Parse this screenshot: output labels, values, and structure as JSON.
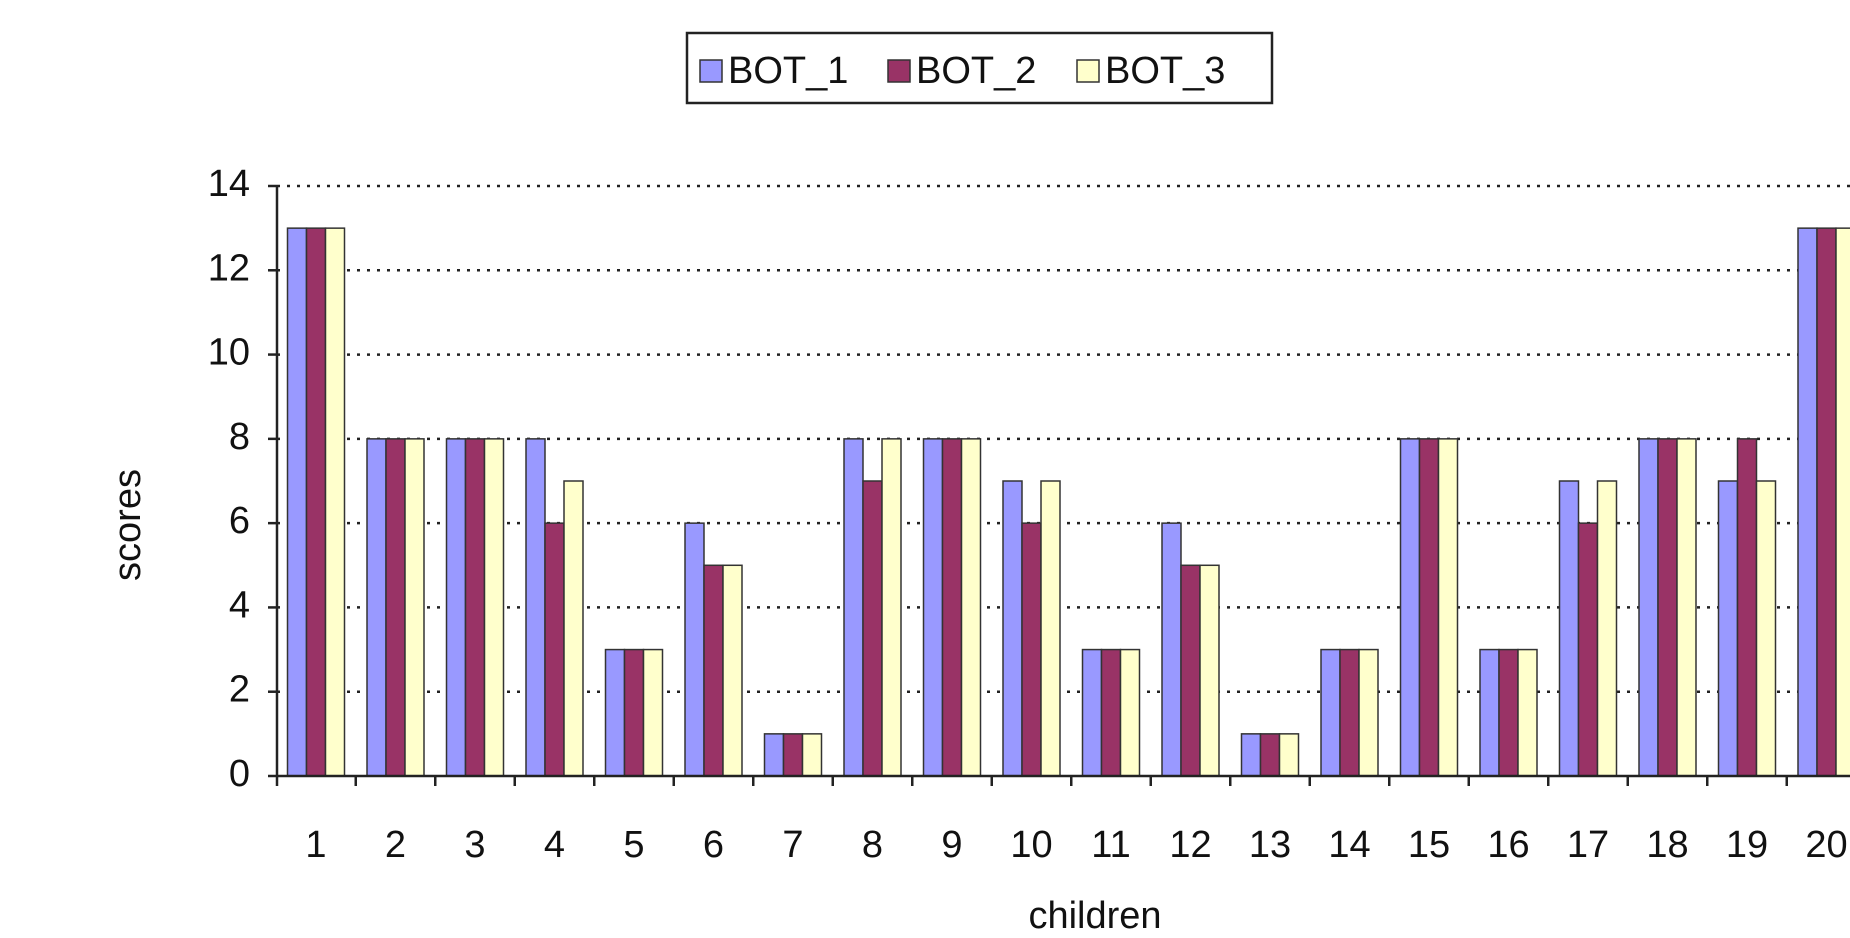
{
  "chart_data": {
    "type": "bar",
    "x_label": "children",
    "y_label": "scores",
    "categories": [
      "1",
      "2",
      "3",
      "4",
      "5",
      "6",
      "7",
      "8",
      "9",
      "10",
      "11",
      "12",
      "13",
      "14",
      "15",
      "16",
      "17",
      "18",
      "19",
      "20"
    ],
    "series": [
      {
        "name": "BOT_1",
        "color": "#9999ff",
        "values": [
          13,
          8,
          8,
          8,
          3,
          6,
          1,
          8,
          8,
          7,
          3,
          6,
          1,
          3,
          8,
          3,
          7,
          8,
          7,
          13
        ]
      },
      {
        "name": "BOT_2",
        "color": "#993366",
        "values": [
          13,
          8,
          8,
          6,
          3,
          5,
          1,
          7,
          8,
          6,
          3,
          5,
          1,
          3,
          8,
          3,
          6,
          8,
          8,
          13
        ]
      },
      {
        "name": "BOT_3",
        "color": "#ffffcc",
        "values": [
          13,
          8,
          8,
          7,
          3,
          5,
          1,
          8,
          8,
          7,
          3,
          5,
          1,
          3,
          8,
          3,
          7,
          8,
          7,
          13
        ]
      }
    ],
    "ylim": [
      0,
      14
    ],
    "yticks": [
      0,
      2,
      4,
      6,
      8,
      10,
      12,
      14
    ],
    "grid": true,
    "legend": "top"
  }
}
